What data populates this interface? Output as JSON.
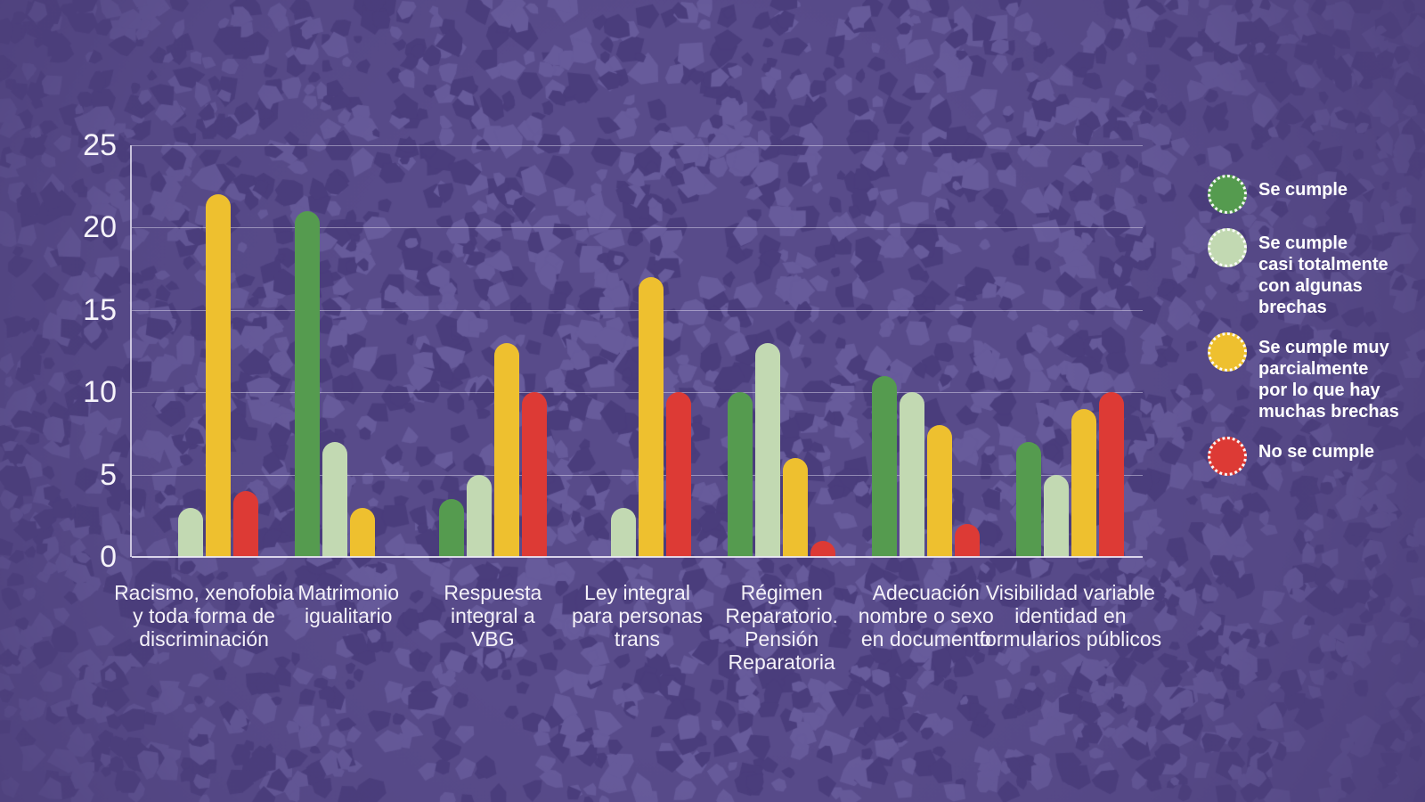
{
  "background": {
    "base_color": "#584b8a",
    "edge_color": "#4d407b",
    "shard_dark": "#4a3d7c",
    "shard_light": "#675b9b"
  },
  "colors": {
    "text": "#ffffff",
    "gridline": "rgba(235,230,246,0.45)",
    "axis": "rgba(240,236,250,0.85)"
  },
  "chart_data": {
    "type": "bar",
    "title": "",
    "xlabel": "",
    "ylabel": "",
    "ylim": [
      0,
      25
    ],
    "yticks": [
      0,
      5,
      10,
      15,
      20,
      25
    ],
    "grid": true,
    "legend_position": "right",
    "categories": [
      {
        "label": "Racismo, xenofobia y toda forma de discriminación",
        "display": "Racismo, xenofobia\ny toda forma de\ndiscriminación"
      },
      {
        "label": "Matrimonio igualitario",
        "display": "Matrimonio\nigualitario"
      },
      {
        "label": "Respuesta integral a VBG",
        "display": "Respuesta\nintegral a\nVBG"
      },
      {
        "label": "Ley integral para personas trans",
        "display": "Ley integral\npara personas\ntrans"
      },
      {
        "label": "Régimen Reparatorio. Pensión Reparatoria",
        "display": "Régimen\nReparatorio.\nPensión\nReparatoria"
      },
      {
        "label": "Adecuación nombre o sexo en documento",
        "display": "Adecuación\nnombre o sexo\nen documento"
      },
      {
        "label": "Visibilidad variable identidad en formularios públicos",
        "display": "Visibilidad variable\nidentidad en\nformularios públicos"
      }
    ],
    "series": [
      {
        "name": "Se cumple",
        "legend_display": "Se cumple",
        "color": "#559b4f",
        "values": [
          0,
          21,
          3.5,
          0,
          10,
          11,
          7
        ]
      },
      {
        "name": "Se cumple casi totalmente con algunas brechas",
        "legend_display": "Se cumple\ncasi totalmente\ncon algunas\nbrechas",
        "color": "#c2d9b2",
        "values": [
          3,
          7,
          5,
          3,
          13,
          10,
          5
        ]
      },
      {
        "name": "Se cumple muy parcialmente por lo que hay muchas brechas",
        "legend_display": "Se cumple muy\nparcialmente\npor lo que hay\nmuchas brechas",
        "color": "#eec02f",
        "values": [
          22,
          3,
          13,
          17,
          6,
          8,
          9
        ]
      },
      {
        "name": "No se cumple",
        "legend_display": "No se cumple",
        "color": "#dd3a35",
        "values": [
          4,
          0,
          10,
          10,
          1,
          2,
          10
        ]
      }
    ]
  }
}
